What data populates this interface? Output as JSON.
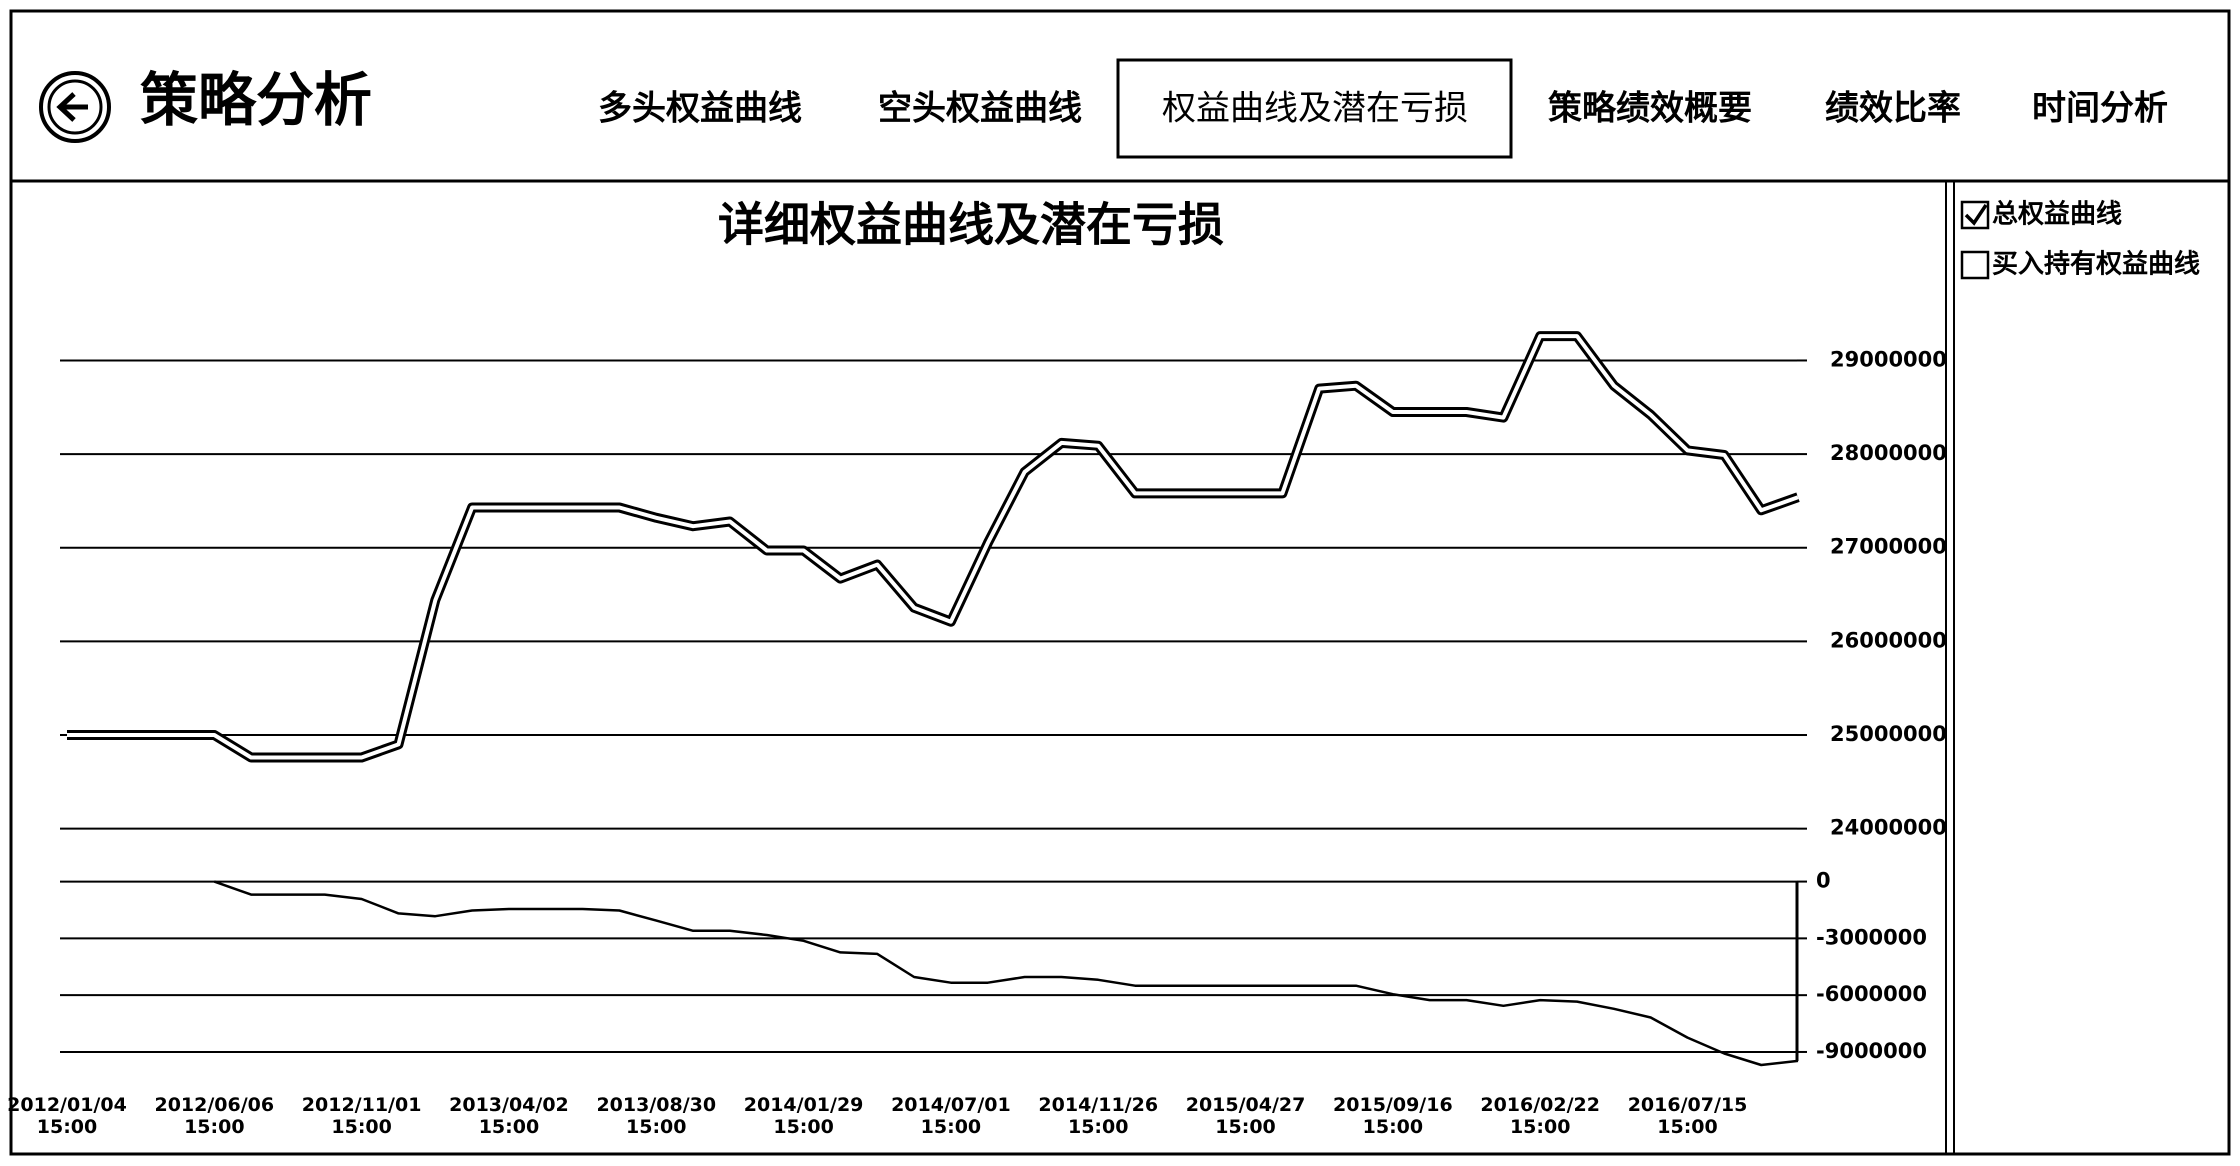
{
  "header": {
    "title": "策略分析",
    "tabs": [
      "多头权益曲线",
      "空头权益曲线",
      "权益曲线及潜在亏损",
      "策略绩效概要",
      "绩效比率",
      "时间分析"
    ],
    "active_tab": 2
  },
  "legend": [
    {
      "label": "总权益曲线",
      "checked": true
    },
    {
      "label": "买入持有权益曲线",
      "checked": false
    }
  ],
  "chart_data": [
    {
      "type": "line",
      "title": "详细权益曲线及潜在亏损",
      "categories": [
        "2012/01/04\n15:00",
        null,
        null,
        null,
        "2012/06/06\n15:00",
        null,
        null,
        null,
        "2012/11/01\n15:00",
        null,
        null,
        null,
        "2013/04/02\n15:00",
        null,
        null,
        null,
        "2013/08/30\n15:00",
        null,
        null,
        null,
        "2014/01/29\n15:00",
        null,
        null,
        null,
        "2014/07/01\n15:00",
        null,
        null,
        null,
        "2014/11/26\n15:00",
        null,
        null,
        null,
        "2015/04/27\n15:00",
        null,
        null,
        null,
        "2015/09/16\n15:00",
        null,
        null,
        null,
        "2016/02/22\n15:00",
        null,
        null,
        null,
        "2016/07/15\n15:00",
        null,
        null,
        null
      ],
      "color": "#000000",
      "values": [
        25000000,
        25000000,
        25000000,
        25000000,
        25000000,
        24760000,
        24760000,
        24760000,
        24760000,
        24900000,
        26440000,
        27430000,
        27430000,
        27430000,
        27430000,
        27430000,
        27320000,
        27230000,
        27280000,
        26970000,
        26970000,
        26670000,
        26820000,
        26360000,
        26210000,
        27050000,
        27810000,
        28120000,
        28090000,
        27580000,
        27580000,
        27580000,
        27580000,
        27580000,
        28700000,
        28730000,
        28450000,
        28450000,
        28450000,
        28390000,
        29260000,
        29260000,
        28730000,
        28420000,
        28040000,
        27990000,
        27400000,
        27540000
      ],
      "ylim": [
        23740000,
        29870000
      ],
      "yticks": [
        24000000,
        25000000,
        26000000,
        27000000,
        28000000,
        29000000
      ],
      "grid": true
    },
    {
      "type": "line",
      "color": "#000000",
      "values": [
        null,
        null,
        null,
        null,
        0,
        -690000,
        -690000,
        -690000,
        -920000,
        -1680000,
        -1830000,
        -1530000,
        -1450000,
        -1450000,
        -1450000,
        -1530000,
        -2060000,
        -2600000,
        -2600000,
        -2820000,
        -3130000,
        -3740000,
        -3820000,
        -5040000,
        -5340000,
        -5340000,
        -5040000,
        -5040000,
        -5190000,
        -5500000,
        -5500000,
        -5500000,
        -5500000,
        -5500000,
        -5500000,
        -5500000,
        -5950000,
        -6260000,
        -6260000,
        -6560000,
        -6260000,
        -6340000,
        -6720000,
        -7180000,
        -8240000,
        -9080000,
        -9690000,
        -9470000
      ],
      "ylim": [
        -9900000,
        400000
      ],
      "yticks": [
        -9000000,
        -6000000,
        -3000000,
        0
      ],
      "grid": true
    }
  ]
}
